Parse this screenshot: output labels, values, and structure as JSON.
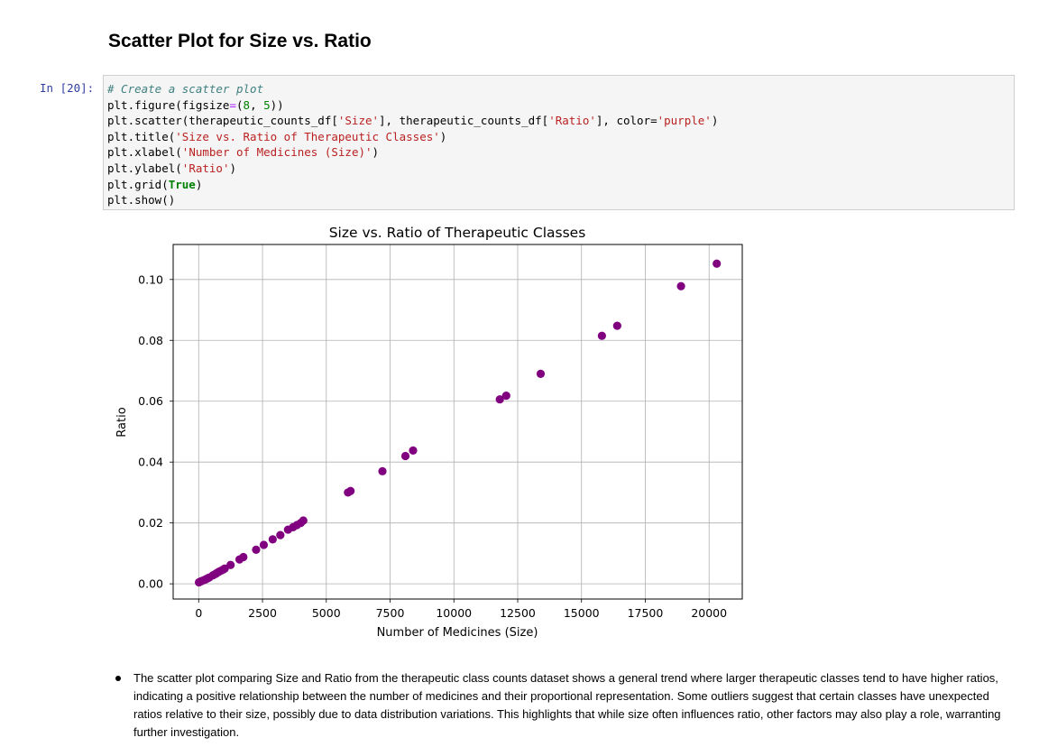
{
  "notebook": {
    "heading": "Scatter Plot for Size vs. Ratio",
    "cell": {
      "prompt": "In [20]:",
      "code_lines": [
        "# Create a scatter plot",
        "plt.figure(figsize=(8, 5))",
        "plt.scatter(therapeutic_counts_df['Size'], therapeutic_counts_df['Ratio'], color='purple')",
        "plt.title('Size vs. Ratio of Therapeutic Classes')",
        "plt.xlabel('Number of Medicines (Size)')",
        "plt.ylabel('Ratio')",
        "plt.grid(True)",
        "plt.show()"
      ]
    },
    "bullets": [
      "The scatter plot comparing Size and Ratio from the therapeutic class counts dataset shows a general trend where larger therapeutic classes tend to have higher ratios, indicating a positive relationship between the number of medicines and their proportional representation. Some outliers suggest that certain classes have unexpected ratios relative to their size, possibly due to data distribution variations. This highlights that while size often influences ratio, other factors may also play a role, warranting further investigation."
    ]
  },
  "chart_data": {
    "type": "scatter",
    "title": "Size vs. Ratio of Therapeutic Classes",
    "xlabel": "Number of Medicines (Size)",
    "ylabel": "Ratio",
    "xlim": [
      -1000,
      21300
    ],
    "ylim": [
      -0.005,
      0.1115
    ],
    "xticks": [
      0,
      2500,
      5000,
      7500,
      10000,
      12500,
      15000,
      17500,
      20000
    ],
    "yticks": [
      0.0,
      0.02,
      0.04,
      0.06,
      0.08,
      0.1
    ],
    "ytick_labels": [
      "0.00",
      "0.02",
      "0.04",
      "0.06",
      "0.08",
      "0.10"
    ],
    "grid": true,
    "color": "#800080",
    "series": [
      {
        "x": [
          10,
          60,
          110,
          200,
          280,
          350,
          420,
          560,
          650,
          720,
          800,
          900,
          980,
          1020,
          1250,
          1600,
          1750,
          2250,
          2550,
          2900,
          3200,
          3500,
          3700,
          3850,
          4000,
          4100,
          5850,
          5950,
          7200,
          8100,
          8400,
          11800,
          12050,
          13400,
          15800,
          16400,
          18900,
          20300
        ],
        "y": [
          0.0005,
          0.0007,
          0.0009,
          0.0012,
          0.0015,
          0.0018,
          0.0021,
          0.0028,
          0.0032,
          0.0036,
          0.004,
          0.0044,
          0.0048,
          0.005,
          0.0062,
          0.008,
          0.0088,
          0.0112,
          0.0128,
          0.0146,
          0.016,
          0.0178,
          0.0186,
          0.0193,
          0.02,
          0.0208,
          0.03,
          0.0305,
          0.037,
          0.042,
          0.0438,
          0.0606,
          0.0618,
          0.069,
          0.0815,
          0.0848,
          0.0978,
          0.1052
        ]
      }
    ]
  }
}
